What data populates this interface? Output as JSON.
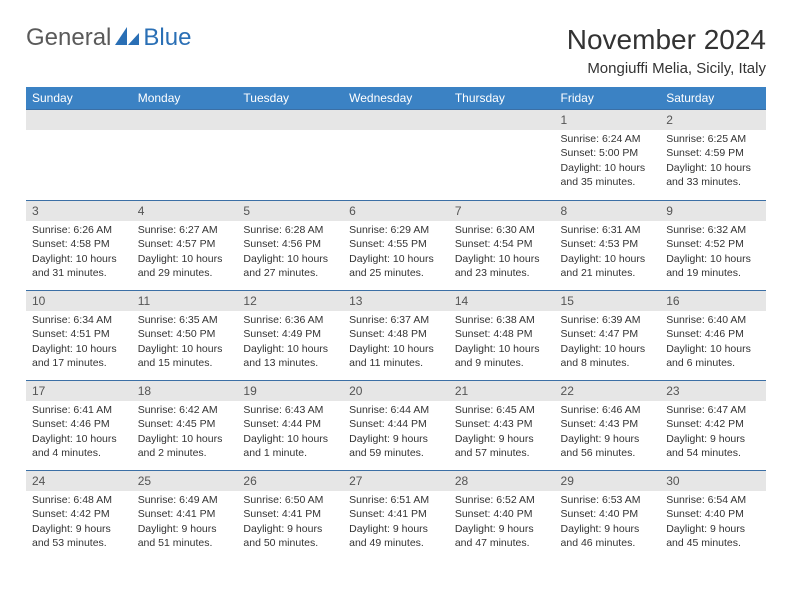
{
  "logo": {
    "part1": "General",
    "part2": "Blue"
  },
  "title": "November 2024",
  "location": "Mongiuffi Melia, Sicily, Italy",
  "colors": {
    "header_blue": "#3b82c4",
    "logo_blue": "#2a6fb5",
    "logo_gray": "#5a5a5a",
    "row_border": "#3b6fa5",
    "daynum_bg": "#e6e6e6"
  },
  "weekdays": [
    "Sunday",
    "Monday",
    "Tuesday",
    "Wednesday",
    "Thursday",
    "Friday",
    "Saturday"
  ],
  "first_day_index": 5,
  "days": [
    {
      "n": "1",
      "sunrise": "6:24 AM",
      "sunset": "5:00 PM",
      "daylight": "10 hours and 35 minutes."
    },
    {
      "n": "2",
      "sunrise": "6:25 AM",
      "sunset": "4:59 PM",
      "daylight": "10 hours and 33 minutes."
    },
    {
      "n": "3",
      "sunrise": "6:26 AM",
      "sunset": "4:58 PM",
      "daylight": "10 hours and 31 minutes."
    },
    {
      "n": "4",
      "sunrise": "6:27 AM",
      "sunset": "4:57 PM",
      "daylight": "10 hours and 29 minutes."
    },
    {
      "n": "5",
      "sunrise": "6:28 AM",
      "sunset": "4:56 PM",
      "daylight": "10 hours and 27 minutes."
    },
    {
      "n": "6",
      "sunrise": "6:29 AM",
      "sunset": "4:55 PM",
      "daylight": "10 hours and 25 minutes."
    },
    {
      "n": "7",
      "sunrise": "6:30 AM",
      "sunset": "4:54 PM",
      "daylight": "10 hours and 23 minutes."
    },
    {
      "n": "8",
      "sunrise": "6:31 AM",
      "sunset": "4:53 PM",
      "daylight": "10 hours and 21 minutes."
    },
    {
      "n": "9",
      "sunrise": "6:32 AM",
      "sunset": "4:52 PM",
      "daylight": "10 hours and 19 minutes."
    },
    {
      "n": "10",
      "sunrise": "6:34 AM",
      "sunset": "4:51 PM",
      "daylight": "10 hours and 17 minutes."
    },
    {
      "n": "11",
      "sunrise": "6:35 AM",
      "sunset": "4:50 PM",
      "daylight": "10 hours and 15 minutes."
    },
    {
      "n": "12",
      "sunrise": "6:36 AM",
      "sunset": "4:49 PM",
      "daylight": "10 hours and 13 minutes."
    },
    {
      "n": "13",
      "sunrise": "6:37 AM",
      "sunset": "4:48 PM",
      "daylight": "10 hours and 11 minutes."
    },
    {
      "n": "14",
      "sunrise": "6:38 AM",
      "sunset": "4:48 PM",
      "daylight": "10 hours and 9 minutes."
    },
    {
      "n": "15",
      "sunrise": "6:39 AM",
      "sunset": "4:47 PM",
      "daylight": "10 hours and 8 minutes."
    },
    {
      "n": "16",
      "sunrise": "6:40 AM",
      "sunset": "4:46 PM",
      "daylight": "10 hours and 6 minutes."
    },
    {
      "n": "17",
      "sunrise": "6:41 AM",
      "sunset": "4:46 PM",
      "daylight": "10 hours and 4 minutes."
    },
    {
      "n": "18",
      "sunrise": "6:42 AM",
      "sunset": "4:45 PM",
      "daylight": "10 hours and 2 minutes."
    },
    {
      "n": "19",
      "sunrise": "6:43 AM",
      "sunset": "4:44 PM",
      "daylight": "10 hours and 1 minute."
    },
    {
      "n": "20",
      "sunrise": "6:44 AM",
      "sunset": "4:44 PM",
      "daylight": "9 hours and 59 minutes."
    },
    {
      "n": "21",
      "sunrise": "6:45 AM",
      "sunset": "4:43 PM",
      "daylight": "9 hours and 57 minutes."
    },
    {
      "n": "22",
      "sunrise": "6:46 AM",
      "sunset": "4:43 PM",
      "daylight": "9 hours and 56 minutes."
    },
    {
      "n": "23",
      "sunrise": "6:47 AM",
      "sunset": "4:42 PM",
      "daylight": "9 hours and 54 minutes."
    },
    {
      "n": "24",
      "sunrise": "6:48 AM",
      "sunset": "4:42 PM",
      "daylight": "9 hours and 53 minutes."
    },
    {
      "n": "25",
      "sunrise": "6:49 AM",
      "sunset": "4:41 PM",
      "daylight": "9 hours and 51 minutes."
    },
    {
      "n": "26",
      "sunrise": "6:50 AM",
      "sunset": "4:41 PM",
      "daylight": "9 hours and 50 minutes."
    },
    {
      "n": "27",
      "sunrise": "6:51 AM",
      "sunset": "4:41 PM",
      "daylight": "9 hours and 49 minutes."
    },
    {
      "n": "28",
      "sunrise": "6:52 AM",
      "sunset": "4:40 PM",
      "daylight": "9 hours and 47 minutes."
    },
    {
      "n": "29",
      "sunrise": "6:53 AM",
      "sunset": "4:40 PM",
      "daylight": "9 hours and 46 minutes."
    },
    {
      "n": "30",
      "sunrise": "6:54 AM",
      "sunset": "4:40 PM",
      "daylight": "9 hours and 45 minutes."
    }
  ],
  "labels": {
    "sunrise": "Sunrise:",
    "sunset": "Sunset:",
    "daylight": "Daylight:"
  }
}
